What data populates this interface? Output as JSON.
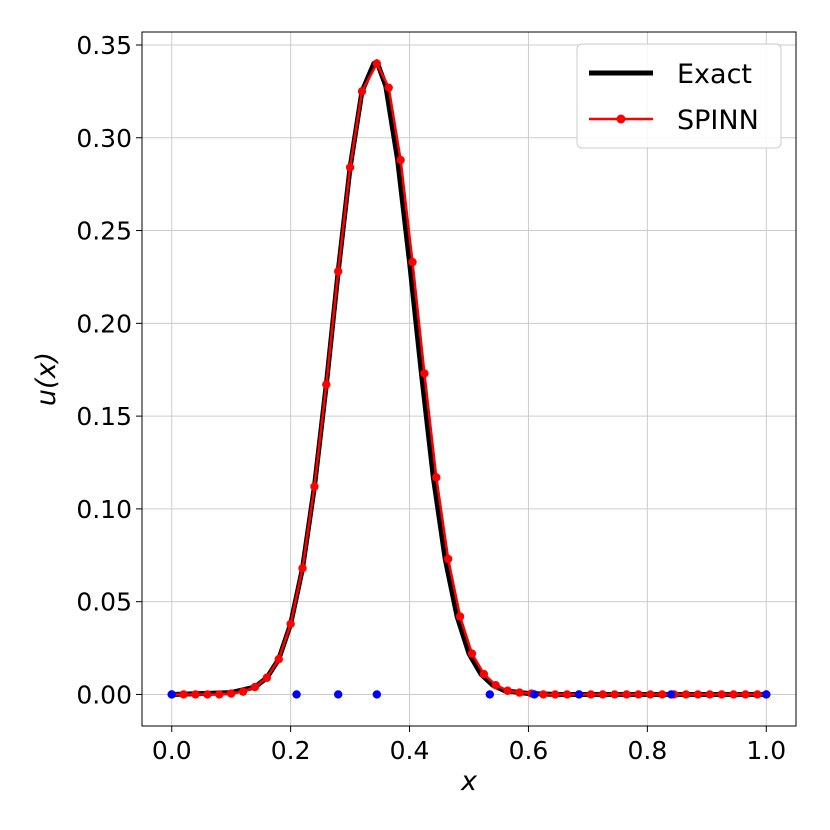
{
  "chart_data": {
    "type": "line",
    "xlabel": "x",
    "ylabel": "u(x)",
    "xlim": [
      -0.05,
      1.05
    ],
    "ylim": [
      -0.017,
      0.357
    ],
    "grid": true,
    "legend_position": "top-right",
    "xticks": [
      0.0,
      0.2,
      0.4,
      0.6,
      0.8,
      1.0
    ],
    "xtick_labels": [
      "0.0",
      "0.2",
      "0.4",
      "0.6",
      "0.8",
      "1.0"
    ],
    "yticks": [
      0.0,
      0.05,
      0.1,
      0.15,
      0.2,
      0.25,
      0.3,
      0.35
    ],
    "ytick_labels": [
      "0.00",
      "0.05",
      "0.10",
      "0.15",
      "0.20",
      "0.25",
      "0.30",
      "0.35"
    ],
    "series": [
      {
        "name": "Exact",
        "color": "#000000",
        "style": "line",
        "x": [
          0.0,
          0.1,
          0.14,
          0.16,
          0.18,
          0.2,
          0.22,
          0.24,
          0.26,
          0.28,
          0.3,
          0.32,
          0.34,
          0.345,
          0.36,
          0.38,
          0.4,
          0.42,
          0.44,
          0.46,
          0.48,
          0.5,
          0.52,
          0.54,
          0.56,
          0.6,
          0.65,
          1.0
        ],
        "y": [
          0.0,
          0.001,
          0.004,
          0.009,
          0.019,
          0.038,
          0.068,
          0.112,
          0.167,
          0.228,
          0.284,
          0.325,
          0.34,
          0.341,
          0.328,
          0.288,
          0.233,
          0.173,
          0.117,
          0.073,
          0.042,
          0.022,
          0.011,
          0.005,
          0.002,
          0.0005,
          0.0,
          0.0
        ]
      },
      {
        "name": "SPINN",
        "color": "#ff0000",
        "style": "line-marker",
        "x": [
          0.0,
          0.02,
          0.04,
          0.06,
          0.08,
          0.1,
          0.12,
          0.14,
          0.16,
          0.18,
          0.2,
          0.22,
          0.24,
          0.26,
          0.28,
          0.3,
          0.32,
          0.345,
          0.365,
          0.385,
          0.405,
          0.425,
          0.445,
          0.465,
          0.485,
          0.505,
          0.525,
          0.545,
          0.565,
          0.585,
          0.605,
          0.625,
          0.645,
          0.665,
          0.685,
          0.705,
          0.725,
          0.745,
          0.765,
          0.785,
          0.805,
          0.825,
          0.845,
          0.865,
          0.885,
          0.905,
          0.925,
          0.945,
          0.965,
          0.985,
          1.0
        ],
        "y": [
          0.0,
          0.0,
          0.0,
          0.0,
          0.0,
          0.0005,
          0.0015,
          0.004,
          0.009,
          0.019,
          0.038,
          0.068,
          0.112,
          0.167,
          0.228,
          0.284,
          0.325,
          0.34,
          0.327,
          0.288,
          0.233,
          0.173,
          0.117,
          0.073,
          0.042,
          0.022,
          0.011,
          0.005,
          0.002,
          0.001,
          0.0005,
          0.0,
          0.0,
          0.0,
          0.0,
          0.0,
          0.0,
          0.0,
          0.0,
          0.0,
          0.0,
          0.0,
          0.0,
          0.0,
          0.0,
          0.0,
          0.0,
          0.0,
          0.0,
          0.0,
          0.0
        ]
      }
    ],
    "extra_points": {
      "color": "#0000ff",
      "x": [
        0.0,
        0.21,
        0.28,
        0.345,
        0.535,
        0.61,
        0.685,
        0.84,
        1.0
      ],
      "y": [
        0.0,
        0.0,
        0.0,
        0.0,
        0.0,
        0.0,
        0.0,
        0.0,
        0.0
      ]
    }
  }
}
